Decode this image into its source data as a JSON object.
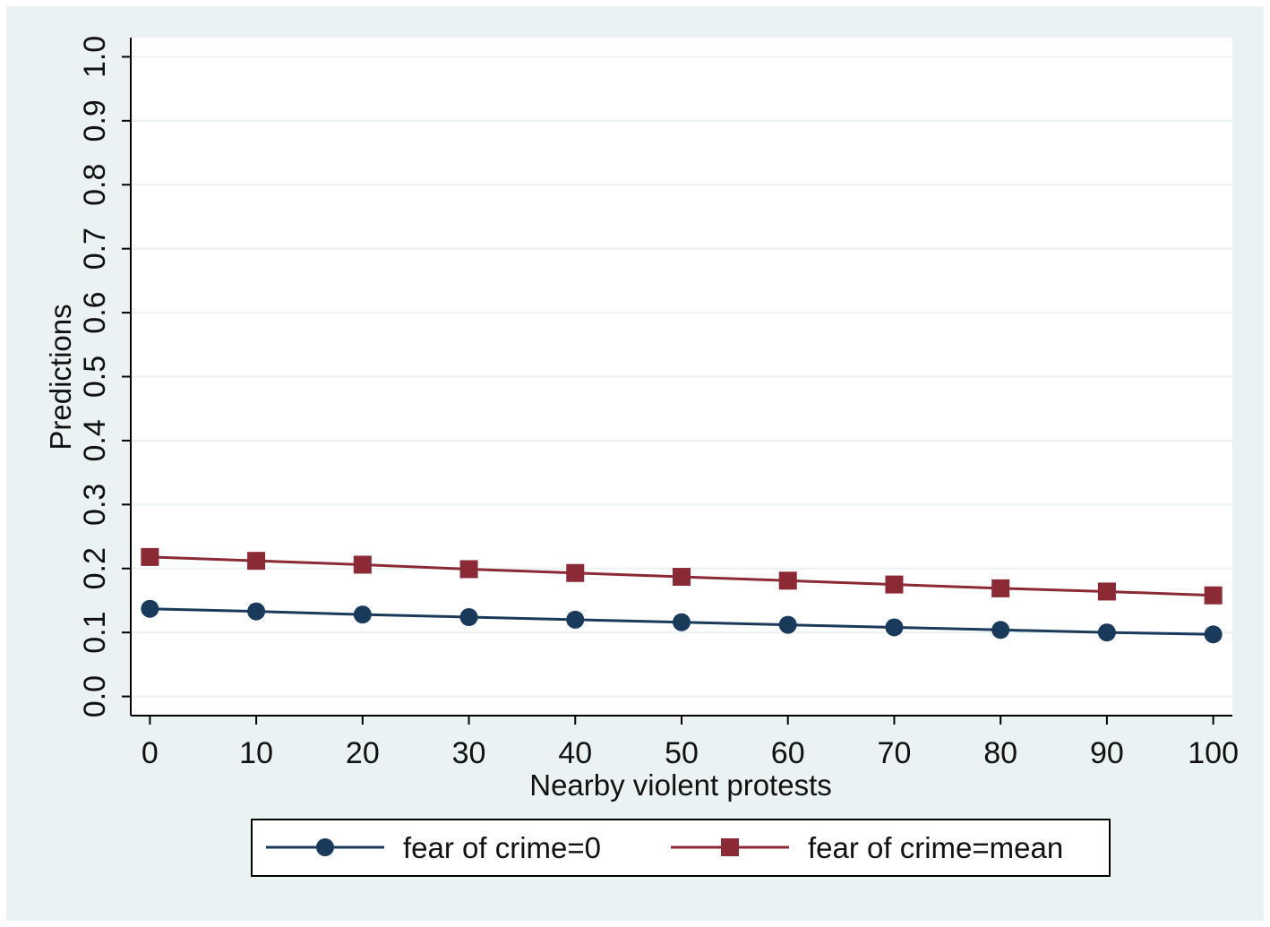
{
  "chart_data": {
    "type": "line",
    "title": "",
    "xlabel": "Nearby violent protests",
    "ylabel": "Predictions",
    "x": [
      0,
      10,
      20,
      30,
      40,
      50,
      60,
      70,
      80,
      90,
      100
    ],
    "x_ticks": [
      "0",
      "10",
      "20",
      "30",
      "40",
      "50",
      "60",
      "70",
      "80",
      "90",
      "100"
    ],
    "y_ticks": [
      "0.0",
      "0.1",
      "0.2",
      "0.3",
      "0.4",
      "0.5",
      "0.6",
      "0.7",
      "0.8",
      "0.9",
      "1.0"
    ],
    "xlim": [
      -1.8,
      101.8
    ],
    "ylim": [
      -0.03,
      1.03
    ],
    "grid": true,
    "legend_position": "bottom",
    "series": [
      {
        "name": "fear of crime=0",
        "marker": "circle",
        "color": "#1a3a5c",
        "values": [
          0.137,
          0.133,
          0.128,
          0.124,
          0.12,
          0.116,
          0.112,
          0.108,
          0.104,
          0.1,
          0.097
        ]
      },
      {
        "name": "fear of crime=mean",
        "marker": "square",
        "color": "#8b2a34",
        "values": [
          0.218,
          0.212,
          0.206,
          0.199,
          0.193,
          0.187,
          0.181,
          0.175,
          0.169,
          0.164,
          0.158
        ]
      }
    ]
  }
}
